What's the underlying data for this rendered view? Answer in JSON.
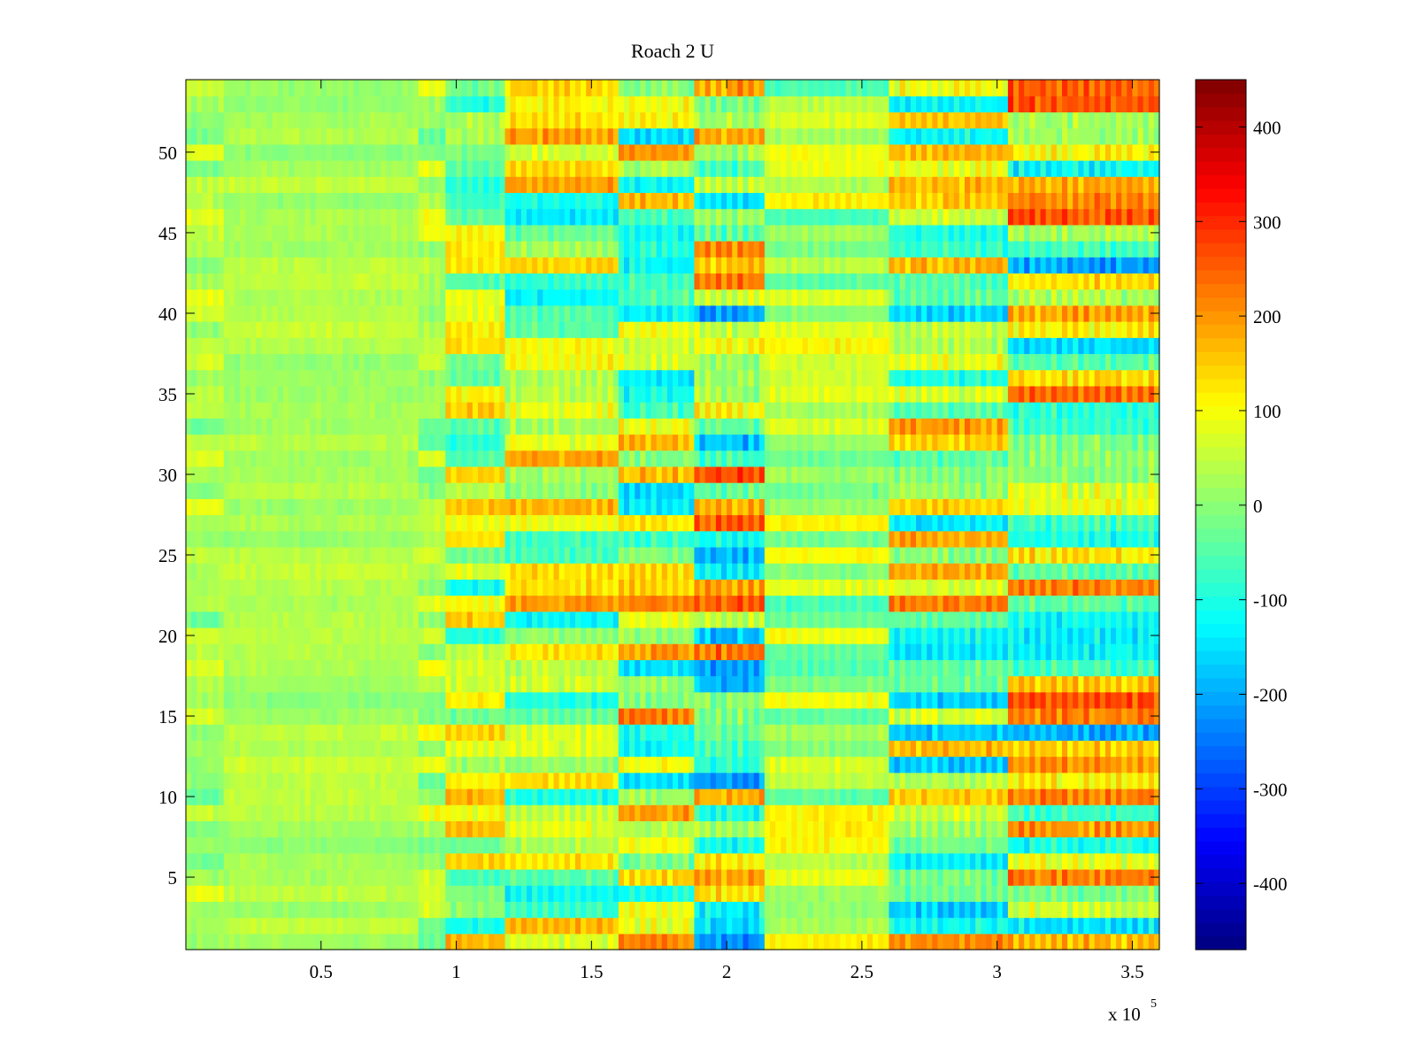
{
  "chart_data": {
    "type": "heatmap",
    "title": "Roach 2 U",
    "xlabel": "",
    "ylabel": "",
    "x_multiplier_label": "x 10",
    "x_multiplier_exponent": "5",
    "xlim": [
      0,
      3.6
    ],
    "ylim": [
      0.5,
      54.5
    ],
    "x_ticks": [
      0.5,
      1,
      1.5,
      2,
      2.5,
      3,
      3.5
    ],
    "x_tick_labels": [
      "0.5",
      "1",
      "1.5",
      "2",
      "2.5",
      "3",
      "3.5"
    ],
    "y_ticks": [
      5,
      10,
      15,
      20,
      25,
      30,
      35,
      40,
      45,
      50
    ],
    "y_tick_labels": [
      "5",
      "10",
      "15",
      "20",
      "25",
      "30",
      "35",
      "40",
      "45",
      "50"
    ],
    "n_rows": 54,
    "n_cols": 180,
    "colormap": "jet",
    "colorbar": {
      "clim": [
        -470,
        450
      ],
      "ticks": [
        -400,
        -300,
        -200,
        -100,
        0,
        100,
        200,
        300,
        400
      ],
      "tick_labels": [
        "-400",
        "-300",
        "-200",
        "-100",
        "0",
        "100",
        "200",
        "300",
        "400"
      ]
    },
    "grid": false,
    "x_regions": [
      {
        "x0": 0.0,
        "x1": 0.15,
        "amp": 70
      },
      {
        "x0": 0.15,
        "x1": 0.86,
        "amp": 35
      },
      {
        "x0": 0.86,
        "x1": 0.96,
        "amp": 90
      },
      {
        "x0": 0.96,
        "x1": 1.18,
        "amp": 170
      },
      {
        "x0": 1.18,
        "x1": 1.6,
        "amp": 200
      },
      {
        "x0": 1.6,
        "x1": 1.88,
        "amp": 230
      },
      {
        "x0": 1.88,
        "x1": 2.14,
        "amp": 300
      },
      {
        "x0": 2.14,
        "x1": 2.6,
        "amp": 110
      },
      {
        "x0": 2.6,
        "x1": 3.05,
        "amp": 240
      },
      {
        "x0": 3.05,
        "x1": 3.6,
        "amp": 280
      }
    ]
  }
}
